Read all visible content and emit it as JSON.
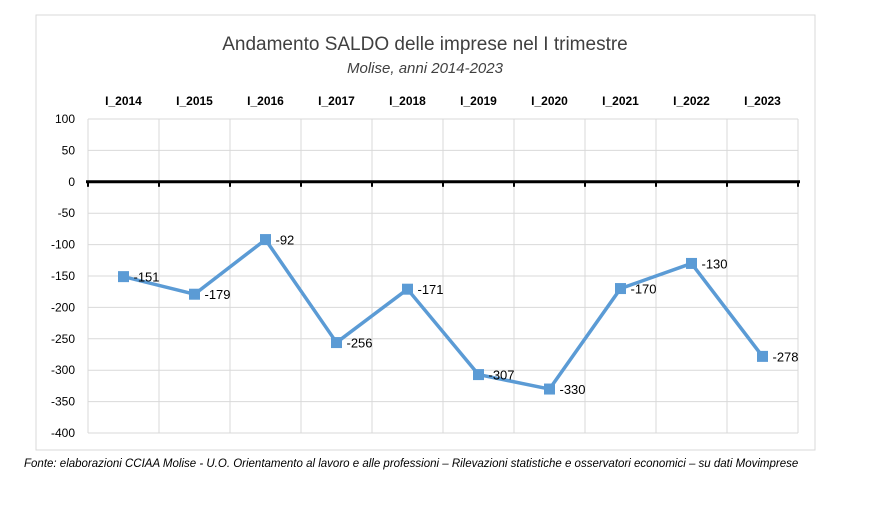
{
  "chart_data": {
    "type": "line",
    "title": "Andamento SALDO delle imprese nel I trimestre",
    "subtitle": "Molise, anni 2014-2023",
    "categories": [
      "I_2014",
      "I_2015",
      "I_2016",
      "I_2017",
      "I_2018",
      "I_2019",
      "I_2020",
      "I_2021",
      "I_2022",
      "I_2023"
    ],
    "series": [
      {
        "values": [
          -151,
          -179,
          -92,
          -256,
          -171,
          -307,
          -330,
          -170,
          -130,
          -278
        ],
        "color": "#5b9bd5"
      }
    ],
    "data_labels": [
      "-151",
      "-179",
      "-92",
      "-256",
      "-171",
      "-307",
      "-330",
      "-170",
      "-130",
      "-278"
    ],
    "ylim": [
      -400,
      100
    ],
    "yticks": [
      100,
      50,
      0,
      -50,
      -100,
      -150,
      -200,
      -250,
      -300,
      -350,
      -400
    ],
    "ytick_labels": [
      "100",
      "50",
      "0",
      "-50",
      "-100",
      "-150",
      "-200",
      "-250",
      "-300",
      "-350",
      "-400"
    ],
    "xlabel": "",
    "ylabel": "",
    "grid": true,
    "category_axis_position": "top",
    "legend": "none"
  },
  "source_note": "Fonte: elaborazioni CCIAA Molise - U.O. Orientamento al lavoro e alle professioni – Rilevazioni statistiche e osservatori economici – su dati Movimprese"
}
